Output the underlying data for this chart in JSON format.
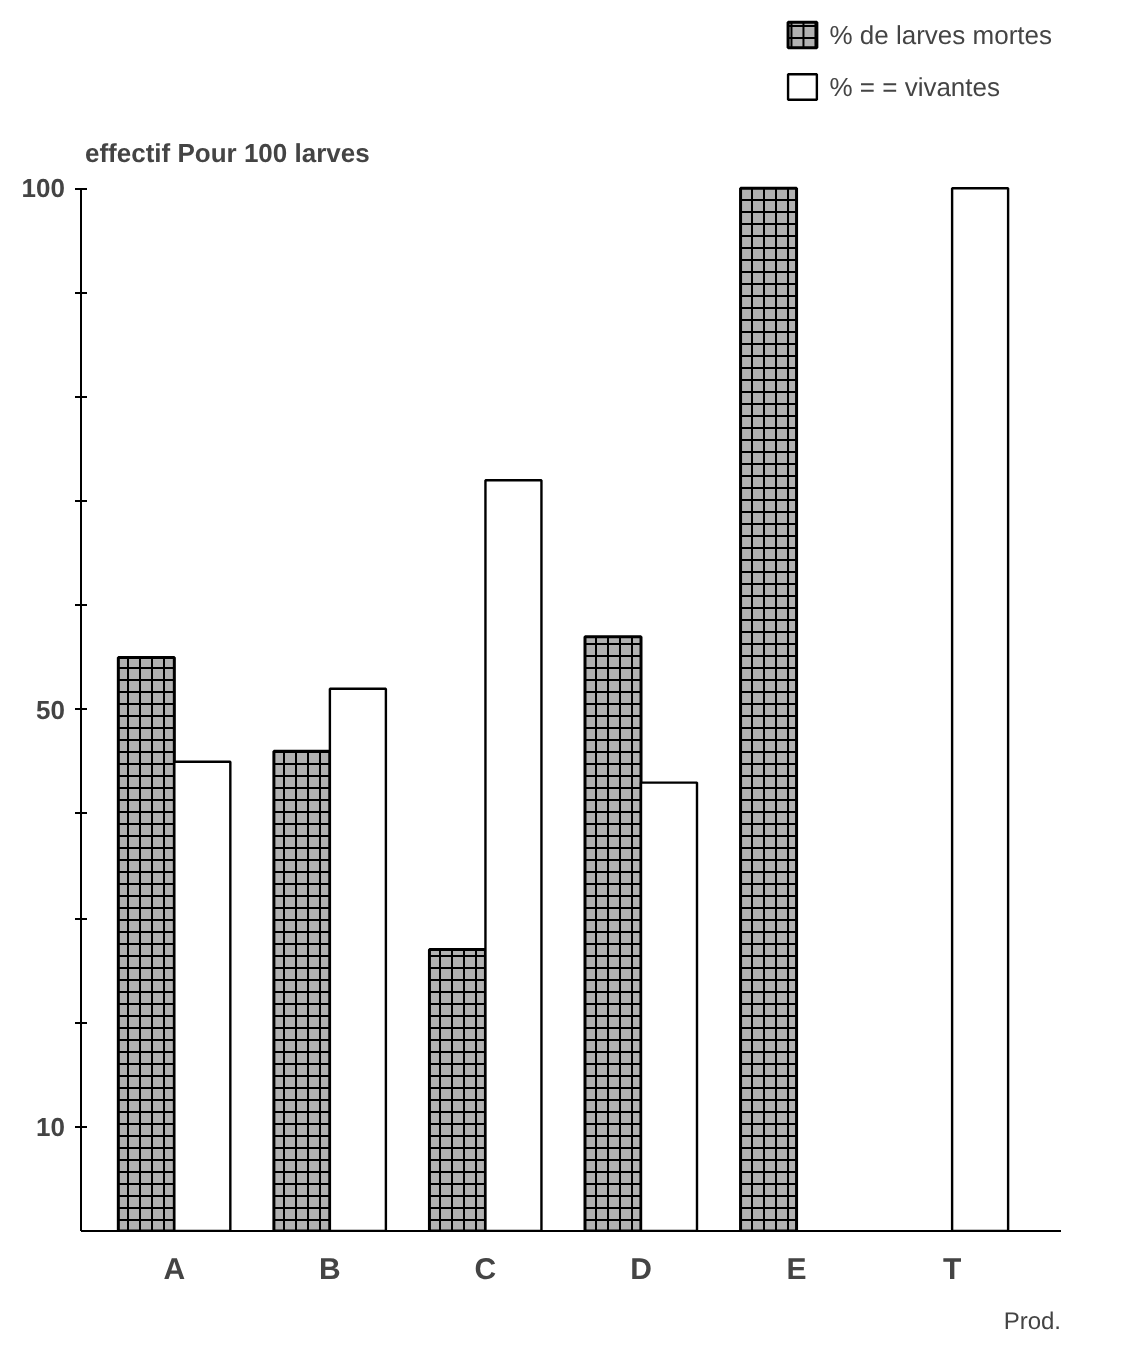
{
  "chart_data": {
    "type": "bar",
    "ylabel": "effectif Pour 100 larves",
    "xlabel": "Prod.",
    "categories": [
      "A",
      "B",
      "C",
      "D",
      "E",
      "T"
    ],
    "series": [
      {
        "name": "% de larves mortes",
        "color": "#000000",
        "values": [
          55,
          46,
          27,
          57,
          100,
          null
        ]
      },
      {
        "name": "% = = vivantes",
        "color": "#ffffff",
        "values": [
          45,
          52,
          72,
          43,
          null,
          100
        ]
      }
    ],
    "ylim": [
      0,
      100
    ],
    "yticks": [
      10,
      {
        "value": 20,
        "label": null
      },
      {
        "value": 30,
        "label": null
      },
      {
        "value": 40,
        "label": null
      },
      50,
      {
        "value": 60,
        "label": null
      },
      {
        "value": 70,
        "label": null
      },
      {
        "value": 80,
        "label": null
      },
      {
        "value": 90,
        "label": null
      },
      100
    ],
    "grid": false,
    "legend": "top right"
  }
}
